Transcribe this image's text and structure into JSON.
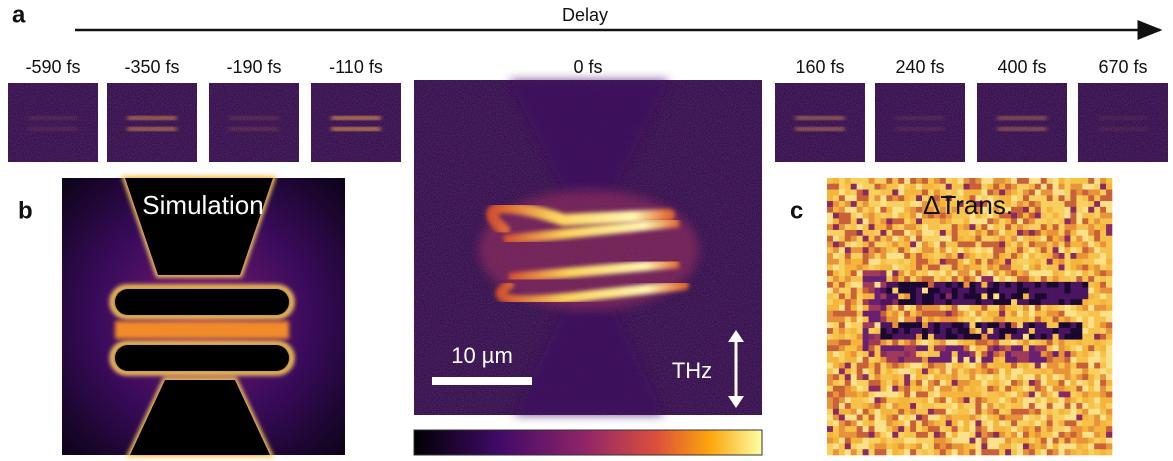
{
  "panel_a": {
    "label": "a",
    "axis_label": "Delay",
    "frames": [
      "-590 fs",
      "-350 fs",
      "-190 fs",
      "-110 fs",
      "0 fs",
      "160 fs",
      "240 fs",
      "400 fs",
      "670 fs"
    ],
    "scale_bar": "10 µm",
    "polarization": "THz"
  },
  "panel_b": {
    "label": "b",
    "title": "Simulation"
  },
  "panel_c": {
    "label": "c",
    "title": "ΔTrans."
  }
}
